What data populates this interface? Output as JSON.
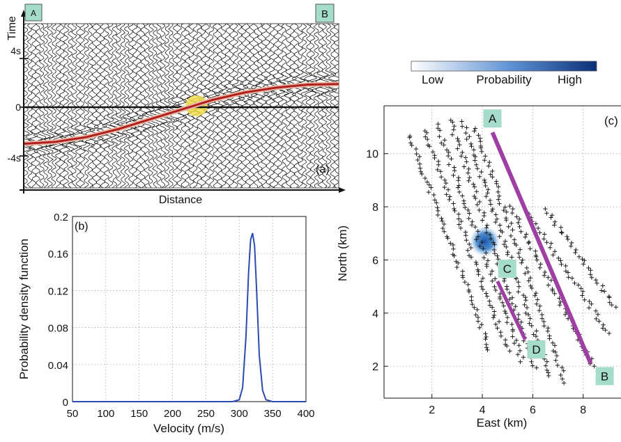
{
  "colors": {
    "trace": "#111111",
    "moveout_outer": "#e7b9a6",
    "moveout_inner": "#b21e1e",
    "highlight": "#f1dd4a",
    "pdf_line": "#2a49b4",
    "grid": "#9a9a9a",
    "line_marker": "#9f3fa3",
    "label_box": "#a6dccb",
    "hotspot": "#2b6fb4",
    "colorbar_low": "#ffffff",
    "colorbar_high": "#0b2f79"
  },
  "chart_data": [
    {
      "type": "line",
      "panel_label": "(a)",
      "title": "",
      "xlabel": "Distance",
      "ylabel": "Time",
      "yticks": [
        "4s",
        "0",
        "-4s"
      ],
      "ylim": [
        -6,
        6.5
      ],
      "corner_labels": [
        "A",
        "B"
      ],
      "moveout_curve": {
        "x": [
          0,
          0.1,
          0.2,
          0.3,
          0.4,
          0.5,
          0.6,
          0.7,
          0.8,
          0.9,
          1.0
        ],
        "y": [
          -3.0,
          -2.85,
          -2.45,
          -1.8,
          -1.0,
          -0.2,
          0.6,
          1.2,
          1.6,
          1.85,
          1.9
        ]
      }
    },
    {
      "type": "line",
      "panel_label": "(b)",
      "title": "",
      "xlabel": "Velocity (m/s)",
      "ylabel": "Probability density function",
      "xlim": [
        50,
        400
      ],
      "ylim": [
        0,
        0.2
      ],
      "xticks": [
        "50",
        "100",
        "150",
        "200",
        "250",
        "300",
        "350",
        "400"
      ],
      "yticks": [
        "0",
        "0.04",
        "0.08",
        "0.12",
        "0.16",
        "0.2"
      ],
      "grid": true,
      "series": [
        {
          "x": [
            50,
            290,
            300,
            305,
            310,
            314,
            317,
            320,
            323,
            326,
            330,
            335,
            340,
            350,
            400
          ],
          "y": [
            0,
            0,
            0.002,
            0.015,
            0.07,
            0.14,
            0.175,
            0.182,
            0.168,
            0.12,
            0.05,
            0.012,
            0.002,
            0,
            0
          ]
        }
      ]
    },
    {
      "type": "scatter",
      "panel_label": "(c)",
      "title": "",
      "xlabel": "East (km)",
      "ylabel": "North (km)",
      "xlim": [
        0.1,
        9.5
      ],
      "ylim": [
        0.8,
        11.8
      ],
      "xticks": [
        "2",
        "4",
        "6",
        "8"
      ],
      "yticks": [
        "2",
        "4",
        "6",
        "8",
        "10"
      ],
      "grid": true,
      "colorbar": {
        "low": "Low",
        "label": "Probability",
        "high": "High"
      },
      "profile_lines": [
        {
          "start_label": "A",
          "end_label": "B",
          "x": [
            4.4,
            8.3
          ],
          "y": [
            10.8,
            2.1
          ]
        },
        {
          "start_label": "C",
          "end_label": "D",
          "x": [
            4.6,
            5.7
          ],
          "y": [
            5.2,
            3.0
          ]
        }
      ],
      "receiver_lines": [
        {
          "x": [
            1.1,
            4.3
          ],
          "y": [
            10.7,
            2.6
          ]
        },
        {
          "x": [
            1.7,
            5.0
          ],
          "y": [
            10.9,
            2.6
          ]
        },
        {
          "x": [
            2.2,
            5.6
          ],
          "y": [
            11.1,
            2.2
          ]
        },
        {
          "x": [
            2.7,
            6.1
          ],
          "y": [
            11.3,
            1.9
          ]
        },
        {
          "x": [
            3.2,
            6.7
          ],
          "y": [
            11.2,
            1.6
          ]
        },
        {
          "x": [
            3.7,
            7.3
          ],
          "y": [
            11.0,
            1.4
          ]
        },
        {
          "x": [
            5.1,
            8.4
          ],
          "y": [
            8.0,
            2.0
          ]
        },
        {
          "x": [
            5.8,
            9.0
          ],
          "y": [
            7.8,
            3.2
          ]
        },
        {
          "x": [
            6.5,
            9.3
          ],
          "y": [
            7.9,
            4.2
          ]
        }
      ],
      "hotspot": {
        "x": 4.1,
        "y": 6.7
      }
    }
  ]
}
